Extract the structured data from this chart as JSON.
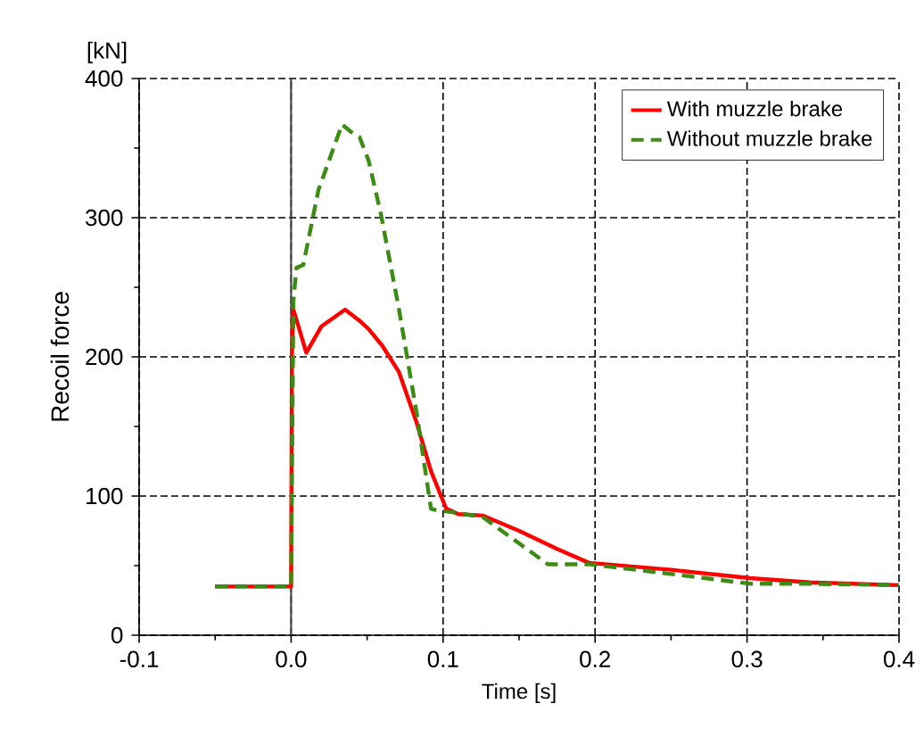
{
  "chart_data": {
    "type": "line",
    "xlabel": "Time [s]",
    "ylabel": "Recoil force",
    "annotations": [
      "[kN]"
    ],
    "xlim": [
      -0.1,
      0.4
    ],
    "ylim": [
      0,
      400
    ],
    "xticks": [
      -0.1,
      {
        "value": 0,
        "label": "0.0"
      },
      0.1,
      0.2,
      0.3,
      0.4
    ],
    "yticks": [
      0,
      100,
      200,
      300,
      400
    ],
    "grid": true,
    "legend": "top right",
    "marker": "none",
    "ref_lines": [
      {
        "axis": "x",
        "value": 0,
        "color": "#404040",
        "line_style": "solid"
      }
    ],
    "series": [
      {
        "name": "With muzzle brake",
        "color": "#ff0000",
        "line_style": "solid",
        "x": [
          -0.05,
          0.0,
          0.0005,
          0.0015,
          0.01,
          0.02,
          0.0355,
          0.045,
          0.051,
          0.06,
          0.071,
          0.0825,
          0.092,
          0.102,
          0.11,
          0.126,
          0.15,
          0.175,
          0.196,
          0.25,
          0.302,
          0.341,
          0.4
        ],
        "values": [
          35,
          35,
          200,
          234,
          203,
          222,
          234,
          226,
          220,
          208,
          189,
          153,
          118,
          91,
          87,
          86,
          75,
          62,
          52,
          47,
          41,
          38,
          36
        ]
      },
      {
        "name": "Without muzzle brake",
        "color": "#3c8c14",
        "line_style": "dashed",
        "x": [
          -0.05,
          0.0,
          0.0015,
          0.0035,
          0.008,
          0.018,
          0.0335,
          0.039,
          0.045,
          0.051,
          0.059,
          0.071,
          0.083,
          0.092,
          0.098,
          0.102,
          0.126,
          0.15,
          0.169,
          0.196,
          0.25,
          0.302,
          0.34,
          0.4
        ],
        "values": [
          35,
          35,
          240,
          264,
          266,
          320,
          367,
          362,
          358,
          341,
          303,
          234,
          157,
          91,
          89,
          89,
          85,
          66,
          51,
          51,
          44,
          37,
          37,
          36
        ]
      }
    ]
  }
}
